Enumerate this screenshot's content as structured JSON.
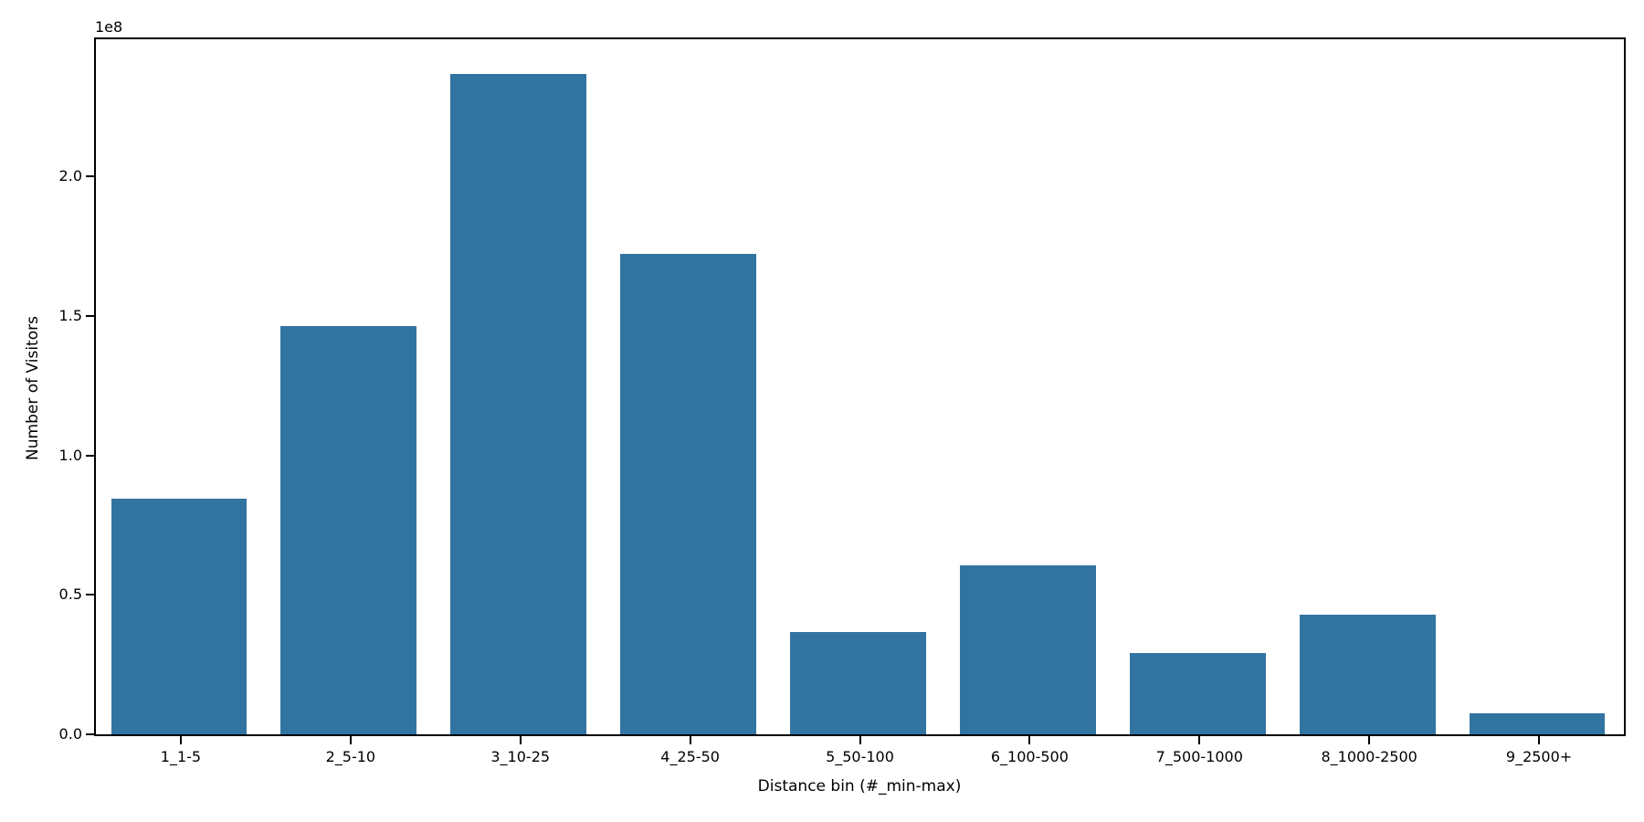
{
  "figure": {
    "background_color": "#ffffff",
    "spine_color": "#000000",
    "text_color": "#000000"
  },
  "chart_data": {
    "type": "bar",
    "title": "",
    "xlabel": "Distance bin (#_min-max)",
    "ylabel": "Number of Visitors",
    "y_offset_label": "1e8",
    "categories": [
      "1_1-5",
      "2_5-10",
      "3_10-25",
      "4_25-50",
      "5_50-100",
      "6_100-500",
      "7_500-1000",
      "8_1000-2500",
      "9_2500+"
    ],
    "values": [
      84500000,
      146300000,
      236800000,
      172300000,
      36700000,
      60600000,
      29200000,
      43000000,
      7500000
    ],
    "series_name": "Number of Visitors",
    "bar_color": "#3274a1",
    "ylim": [
      0,
      249200000
    ],
    "yticks": [
      {
        "value": 0,
        "label": "0.0"
      },
      {
        "value": 50000000,
        "label": "0.5"
      },
      {
        "value": 100000000,
        "label": "1.0"
      },
      {
        "value": 150000000,
        "label": "1.5"
      },
      {
        "value": 200000000,
        "label": "2.0"
      }
    ],
    "grid": false,
    "legend_position": "none"
  }
}
